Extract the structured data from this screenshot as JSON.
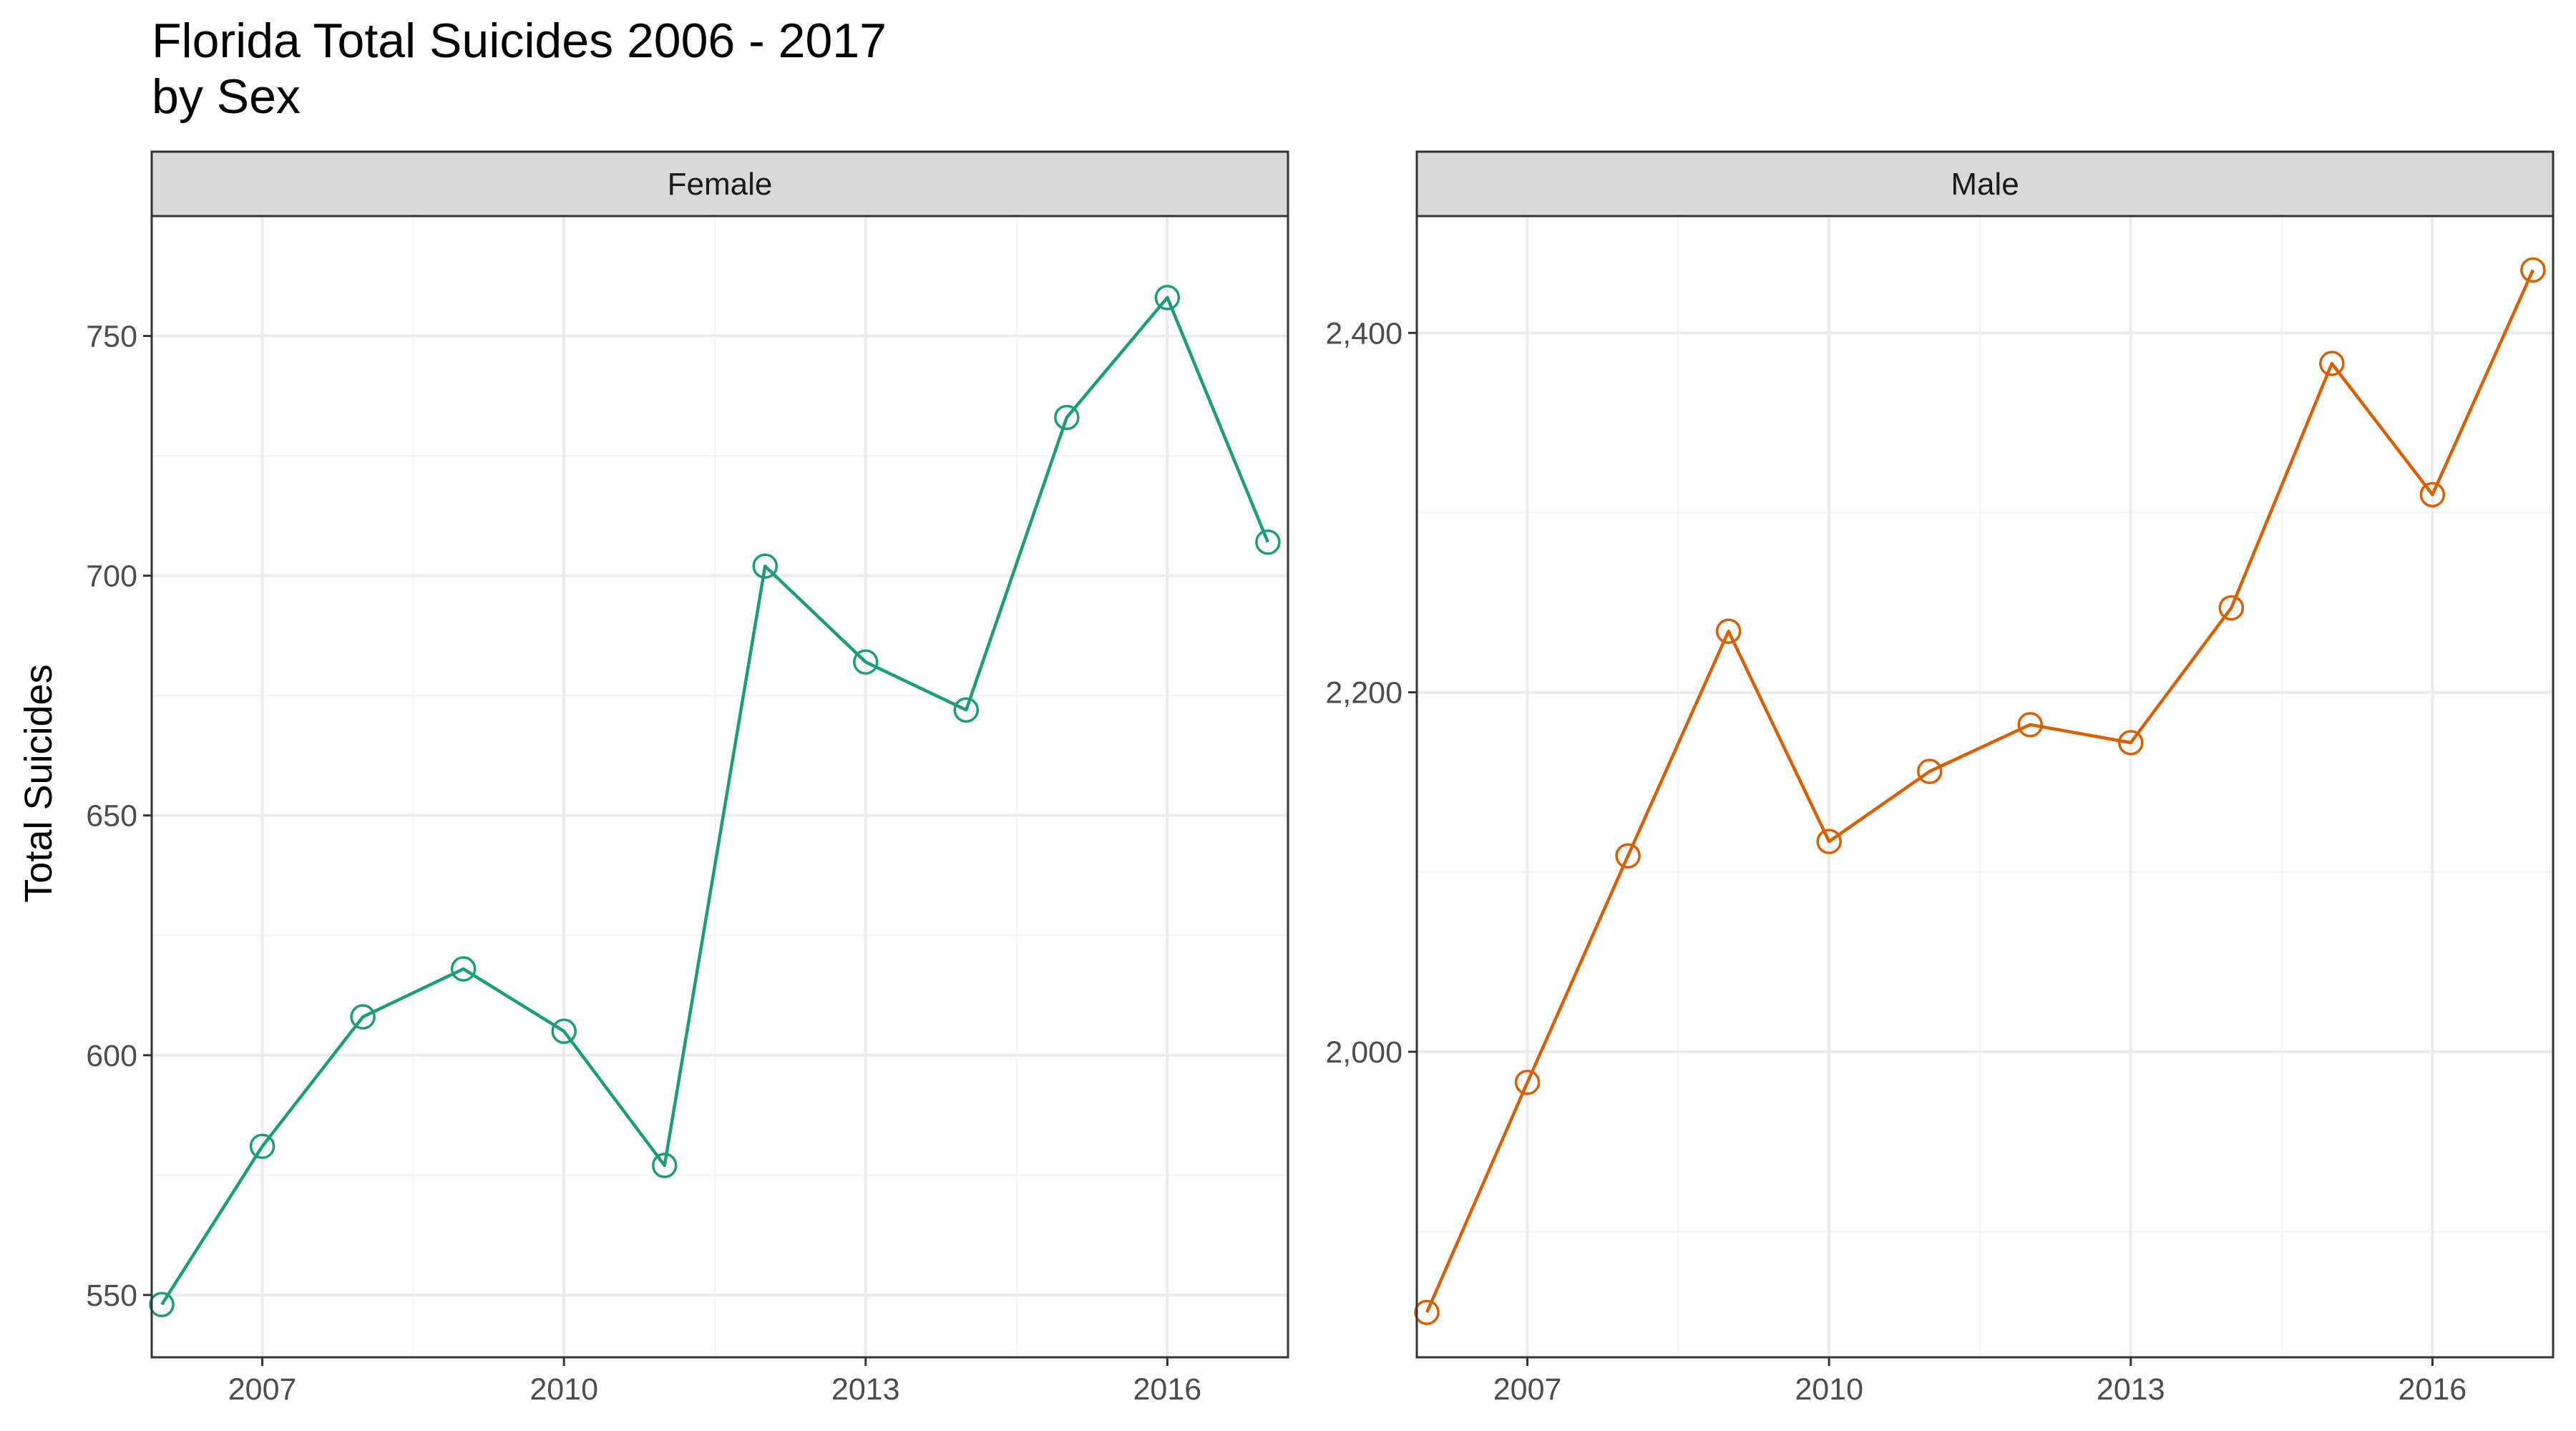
{
  "title": "Florida Total Suicides 2006 - 2017",
  "subtitle": "by Sex",
  "colors": {
    "female": "#1b9e77",
    "male": "#d95f02",
    "strip_fill": "#d9d9d9",
    "grid_major": "#ebebeb",
    "grid_minor": "#f4f4f4",
    "panel_border": "#333333"
  },
  "chart_data": [
    {
      "type": "line",
      "panel": "Female",
      "xlabel": "",
      "ylabel": "Total Suicides",
      "x": [
        2006,
        2007,
        2008,
        2009,
        2010,
        2011,
        2012,
        2013,
        2014,
        2015,
        2016,
        2017
      ],
      "values": [
        548,
        581,
        608,
        618,
        605,
        577,
        702,
        682,
        672,
        733,
        758,
        707
      ],
      "xlim": [
        2005.9,
        2017.2
      ],
      "ylim": [
        537,
        775
      ],
      "x_ticks": [
        2007,
        2010,
        2013,
        2016
      ],
      "x_tick_labels": [
        "2007",
        "2010",
        "2013",
        "2016"
      ],
      "y_ticks": [
        550,
        600,
        650,
        700,
        750
      ],
      "y_tick_labels": [
        "550",
        "600",
        "650",
        "700",
        "750"
      ],
      "markers": "open-circle",
      "grid": true
    },
    {
      "type": "line",
      "panel": "Male",
      "xlabel": "",
      "ylabel": "",
      "x": [
        2006,
        2007,
        2008,
        2009,
        2010,
        2011,
        2012,
        2013,
        2014,
        2015,
        2016,
        2017
      ],
      "values": [
        1855,
        1983,
        2109,
        2234,
        2117,
        2156,
        2182,
        2172,
        2247,
        2383,
        2310,
        2435
      ],
      "xlim": [
        2005.9,
        2017.2
      ],
      "ylim": [
        1830,
        2465
      ],
      "x_ticks": [
        2007,
        2010,
        2013,
        2016
      ],
      "x_tick_labels": [
        "2007",
        "2010",
        "2013",
        "2016"
      ],
      "y_ticks": [
        2000,
        2200,
        2400
      ],
      "y_tick_labels": [
        "2,000",
        "2,200",
        "2,400"
      ],
      "markers": "open-circle",
      "grid": true
    }
  ]
}
